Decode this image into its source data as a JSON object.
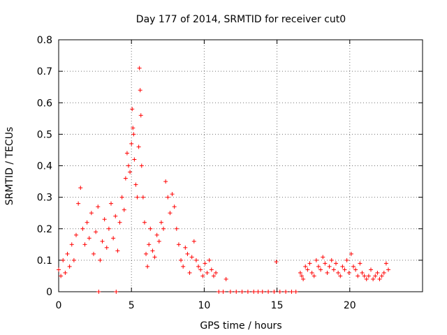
{
  "chart_data": {
    "type": "scatter",
    "title": "Day 177 of 2014, SRMTID for receiver cut0",
    "xlabel": "GPS time / hours",
    "ylabel": "SRMTID / TECUs",
    "xlim": [
      0,
      25
    ],
    "ylim": [
      0,
      0.8
    ],
    "xticks": [
      "0",
      "5",
      "10",
      "15",
      "20"
    ],
    "yticks": [
      "0",
      "0.1",
      "0.2",
      "0.3",
      "0.4",
      "0.5",
      "0.6",
      "0.7",
      "0.8"
    ],
    "grid": true,
    "legend": "none",
    "marker": "plus",
    "color": "#ff0000",
    "series": [
      {
        "name": "SRMTID",
        "x": [
          0.0,
          0.15,
          0.3,
          0.45,
          0.6,
          0.75,
          0.9,
          1.05,
          1.2,
          1.35,
          1.5,
          1.65,
          1.8,
          1.95,
          2.1,
          2.25,
          2.4,
          2.55,
          2.7,
          2.85,
          3.0,
          3.15,
          3.3,
          3.45,
          3.6,
          3.75,
          3.9,
          4.05,
          4.2,
          4.35,
          4.5,
          4.6,
          4.7,
          4.8,
          4.9,
          5.0,
          5.05,
          5.1,
          5.15,
          5.2,
          5.3,
          5.4,
          5.5,
          5.55,
          5.6,
          5.65,
          5.7,
          5.8,
          5.9,
          6.0,
          6.1,
          6.2,
          6.3,
          6.45,
          6.6,
          6.75,
          6.9,
          7.05,
          7.2,
          7.35,
          7.5,
          7.65,
          7.8,
          7.95,
          8.1,
          8.25,
          8.4,
          8.55,
          8.7,
          8.85,
          9.0,
          9.15,
          9.3,
          9.45,
          9.6,
          9.75,
          9.9,
          10.05,
          10.2,
          10.35,
          10.5,
          10.65,
          10.8,
          11.0,
          11.3,
          11.5,
          11.8,
          12.2,
          12.6,
          13.0,
          13.4,
          13.7,
          14.0,
          14.4,
          14.8,
          14.95,
          15.2,
          15.6,
          16.0,
          16.3,
          16.6,
          16.7,
          16.8,
          16.95,
          17.1,
          17.25,
          17.4,
          17.55,
          17.7,
          17.85,
          18.0,
          18.15,
          18.3,
          18.45,
          18.6,
          18.75,
          18.9,
          19.05,
          19.2,
          19.35,
          19.5,
          19.65,
          19.8,
          19.95,
          20.1,
          20.25,
          20.4,
          20.55,
          20.7,
          20.85,
          21.0,
          21.15,
          21.3,
          21.45,
          21.6,
          21.75,
          21.9,
          22.05,
          22.2,
          22.35,
          22.5,
          22.65,
          2.75,
          3.95
        ],
        "y": [
          0.07,
          0.05,
          0.1,
          0.06,
          0.12,
          0.08,
          0.15,
          0.1,
          0.18,
          0.28,
          0.33,
          0.2,
          0.15,
          0.22,
          0.17,
          0.25,
          0.12,
          0.19,
          0.27,
          0.1,
          0.16,
          0.23,
          0.14,
          0.2,
          0.28,
          0.17,
          0.24,
          0.13,
          0.22,
          0.3,
          0.26,
          0.36,
          0.44,
          0.4,
          0.38,
          0.47,
          0.58,
          0.52,
          0.5,
          0.42,
          0.34,
          0.3,
          0.46,
          0.71,
          0.64,
          0.56,
          0.4,
          0.3,
          0.22,
          0.12,
          0.08,
          0.15,
          0.2,
          0.13,
          0.11,
          0.18,
          0.16,
          0.22,
          0.2,
          0.35,
          0.3,
          0.25,
          0.31,
          0.27,
          0.2,
          0.15,
          0.1,
          0.08,
          0.14,
          0.12,
          0.06,
          0.11,
          0.16,
          0.1,
          0.08,
          0.07,
          0.05,
          0.09,
          0.06,
          0.1,
          0.07,
          0.05,
          0.06,
          0.0,
          0.0,
          0.04,
          0.0,
          0.0,
          0.0,
          0.0,
          0.0,
          0.0,
          0.0,
          0.0,
          0.0,
          0.095,
          0.0,
          0.0,
          0.0,
          0.0,
          0.06,
          0.05,
          0.04,
          0.08,
          0.07,
          0.09,
          0.06,
          0.05,
          0.1,
          0.08,
          0.07,
          0.11,
          0.09,
          0.06,
          0.08,
          0.1,
          0.07,
          0.09,
          0.06,
          0.05,
          0.08,
          0.07,
          0.1,
          0.06,
          0.12,
          0.08,
          0.07,
          0.05,
          0.09,
          0.06,
          0.05,
          0.04,
          0.05,
          0.07,
          0.04,
          0.05,
          0.06,
          0.04,
          0.05,
          0.06,
          0.09,
          0.07,
          0.0,
          0.0
        ]
      }
    ]
  }
}
